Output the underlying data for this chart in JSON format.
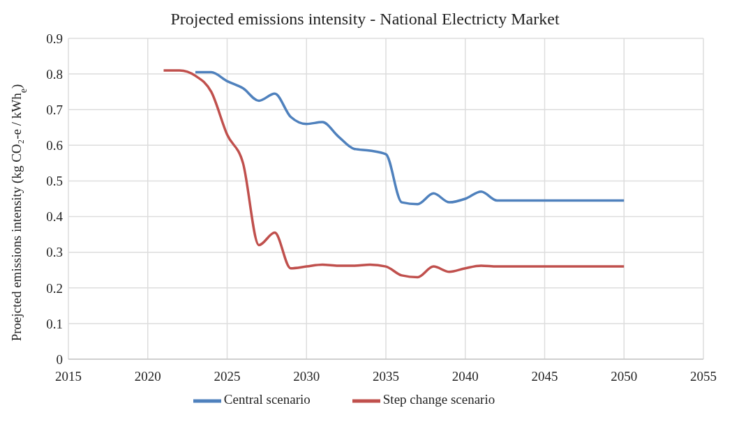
{
  "chart_data": {
    "type": "line",
    "title": "Projected emissions intensity - National Electricty Market",
    "ylabel": "Proejcted emissions intensity (kg CO₂-e / kWh$_{e}$)",
    "x": [
      2021,
      2022,
      2023,
      2024,
      2025,
      2026,
      2027,
      2028,
      2029,
      2030,
      2031,
      2032,
      2033,
      2034,
      2035,
      2036,
      2037,
      2038,
      2039,
      2040,
      2041,
      2042,
      2043,
      2044,
      2045,
      2046,
      2047,
      2048,
      2049,
      2050
    ],
    "series": [
      {
        "name": "Central scenario",
        "color": "#4f81bd",
        "values": [
          null,
          null,
          0.805,
          0.805,
          0.78,
          0.76,
          0.725,
          0.745,
          0.68,
          0.66,
          0.665,
          0.625,
          0.59,
          0.585,
          0.575,
          0.44,
          0.435,
          0.465,
          0.44,
          0.45,
          0.47,
          0.445,
          0.445,
          0.445,
          0.445,
          0.445,
          0.445,
          0.445,
          0.445,
          0.445
        ]
      },
      {
        "name": "Step change scenario",
        "color": "#c0504d",
        "values": [
          0.81,
          0.81,
          0.795,
          0.75,
          0.63,
          0.55,
          0.32,
          0.355,
          0.255,
          0.26,
          0.265,
          0.262,
          0.262,
          0.265,
          0.26,
          0.235,
          0.23,
          0.26,
          0.245,
          0.255,
          0.262,
          0.26,
          0.26,
          0.26,
          0.26,
          0.26,
          0.26,
          0.26,
          0.26,
          0.26
        ]
      }
    ],
    "xlim": [
      2015,
      2055
    ],
    "xticks": [
      2015,
      2020,
      2025,
      2030,
      2035,
      2040,
      2045,
      2050,
      2055
    ],
    "ylim": [
      0,
      0.9
    ],
    "yticks": [
      0,
      0.1,
      0.2,
      0.3,
      0.4,
      0.5,
      0.6,
      0.7,
      0.8,
      0.9
    ],
    "grid": true,
    "legend": "bottom",
    "marker": "none",
    "line_style": "solid"
  }
}
